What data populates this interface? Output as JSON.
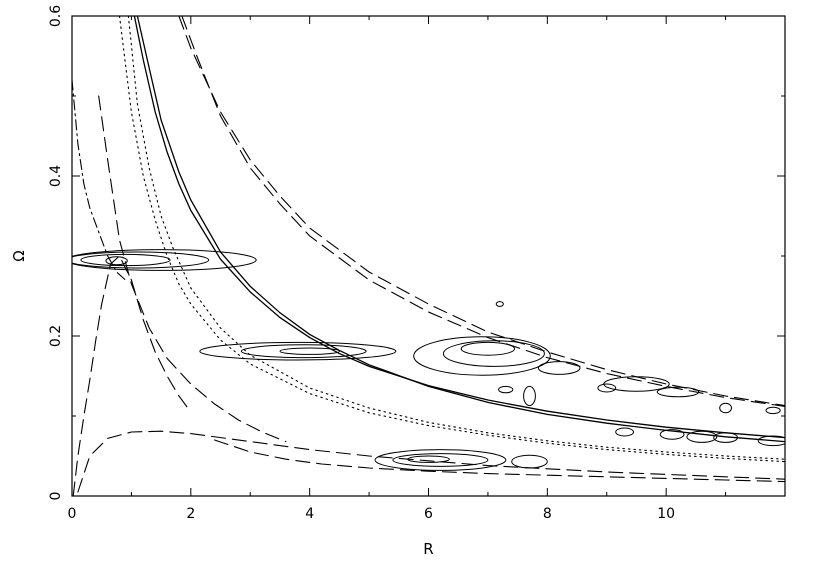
{
  "chart_data": {
    "type": "line",
    "title": "",
    "xlabel": "R",
    "ylabel": "Ω",
    "xlim": [
      0,
      12
    ],
    "ylim": [
      0,
      0.6
    ],
    "xticks": [
      0,
      2,
      4,
      6,
      8,
      10
    ],
    "yticks": [
      0,
      0.2,
      0.4,
      0.6
    ],
    "xtick_labels": [
      "0",
      "2",
      "4",
      "6",
      "8",
      "10"
    ],
    "ytick_labels": [
      "0",
      "0.2",
      "0.4",
      "0.6"
    ],
    "grid": false,
    "legend": "none",
    "color": "#000000",
    "series": [
      {
        "style": "solid",
        "x": [
          1.05,
          1.2,
          1.4,
          1.6,
          1.8,
          2.0,
          2.5,
          3.0,
          3.5,
          4.0,
          4.5,
          5.0,
          6.0,
          7.0,
          8.0,
          9.0,
          10.0,
          11.0,
          12.0
        ],
        "y": [
          0.6,
          0.545,
          0.48,
          0.43,
          0.39,
          0.357,
          0.296,
          0.255,
          0.223,
          0.198,
          0.178,
          0.162,
          0.138,
          0.12,
          0.106,
          0.095,
          0.086,
          0.079,
          0.073
        ]
      },
      {
        "style": "solid",
        "x": [
          1.1,
          1.3,
          1.5,
          1.8,
          2.0,
          2.5,
          3.0,
          3.5,
          4.0,
          4.5,
          5.0,
          6.0,
          7.0,
          8.0,
          9.0,
          10.0,
          11.0,
          12.0
        ],
        "y": [
          0.6,
          0.535,
          0.47,
          0.405,
          0.37,
          0.305,
          0.262,
          0.229,
          0.202,
          0.182,
          0.164,
          0.137,
          0.117,
          0.102,
          0.091,
          0.082,
          0.074,
          0.068
        ]
      },
      {
        "style": "dashed",
        "x": [
          1.8,
          2.0,
          2.5,
          3.0,
          3.5,
          4.0,
          5.0,
          6.0,
          7.0,
          8.0,
          9.0,
          10.0,
          11.0,
          12.0
        ],
        "y": [
          0.6,
          0.56,
          0.48,
          0.42,
          0.375,
          0.335,
          0.28,
          0.24,
          0.205,
          0.18,
          0.158,
          0.14,
          0.125,
          0.113
        ]
      },
      {
        "style": "dashed",
        "x": [
          1.85,
          2.1,
          2.5,
          3.0,
          3.5,
          4.0,
          5.0,
          6.0,
          7.0,
          8.0,
          9.0,
          10.0,
          11.0,
          12.0
        ],
        "y": [
          0.6,
          0.55,
          0.475,
          0.41,
          0.365,
          0.325,
          0.27,
          0.23,
          0.198,
          0.173,
          0.153,
          0.137,
          0.123,
          0.112
        ]
      },
      {
        "style": "dotted",
        "x": [
          0.8,
          1.0,
          1.2,
          1.4,
          1.6,
          1.8,
          2.0,
          2.5,
          3.0,
          4.0,
          5.0,
          6.0,
          7.0,
          8.0,
          9.0,
          10.0,
          11.0,
          12.0
        ],
        "y": [
          0.6,
          0.48,
          0.4,
          0.345,
          0.3,
          0.265,
          0.24,
          0.195,
          0.165,
          0.128,
          0.104,
          0.088,
          0.076,
          0.066,
          0.058,
          0.052,
          0.047,
          0.043
        ]
      },
      {
        "style": "dotted",
        "x": [
          0.95,
          1.1,
          1.3,
          1.5,
          1.7,
          2.0,
          2.5,
          3.0,
          4.0,
          5.0,
          6.0,
          7.0,
          8.0,
          9.0,
          10.0,
          11.0,
          12.0
        ],
        "y": [
          0.6,
          0.49,
          0.41,
          0.35,
          0.31,
          0.26,
          0.21,
          0.176,
          0.135,
          0.11,
          0.092,
          0.079,
          0.069,
          0.061,
          0.055,
          0.05,
          0.046
        ]
      },
      {
        "style": "dash-dot",
        "x": [
          0.0,
          0.1,
          0.2,
          0.3,
          0.45,
          0.6,
          0.75,
          0.9
        ],
        "y": [
          0.52,
          0.44,
          0.39,
          0.36,
          0.33,
          0.3,
          0.28,
          0.27
        ]
      },
      {
        "style": "dashed",
        "x": [
          0.02,
          0.1,
          0.2,
          0.3,
          0.4,
          0.5,
          0.65,
          0.8,
          1.0,
          1.2,
          1.4,
          1.6,
          1.8,
          2.0
        ],
        "y": [
          0.0,
          0.05,
          0.1,
          0.145,
          0.195,
          0.24,
          0.29,
          0.3,
          0.27,
          0.22,
          0.18,
          0.15,
          0.125,
          0.105
        ]
      },
      {
        "style": "dashed",
        "x": [
          0.45,
          0.6,
          0.8,
          1.0,
          1.3,
          1.6,
          2.0,
          2.4,
          2.8,
          3.2,
          3.6
        ],
        "y": [
          0.5,
          0.42,
          0.32,
          0.265,
          0.21,
          0.172,
          0.14,
          0.115,
          0.095,
          0.08,
          0.068
        ]
      },
      {
        "style": "dashed",
        "x": [
          0.1,
          0.3,
          0.6,
          1.0,
          1.5,
          2.0,
          3.0,
          4.0,
          5.0,
          6.0,
          7.0,
          8.0,
          9.0,
          10.0,
          11.0,
          12.0
        ],
        "y": [
          0.005,
          0.05,
          0.072,
          0.08,
          0.081,
          0.078,
          0.068,
          0.058,
          0.05,
          0.044,
          0.038,
          0.034,
          0.03,
          0.027,
          0.024,
          0.021
        ]
      },
      {
        "style": "dashed",
        "x": [
          2.4,
          3.0,
          3.6,
          4.2,
          5.0,
          6.0,
          7.0,
          8.0,
          9.0,
          10.0,
          11.0,
          12.0
        ],
        "y": [
          0.07,
          0.055,
          0.046,
          0.04,
          0.035,
          0.031,
          0.028,
          0.026,
          0.024,
          0.022,
          0.02,
          0.018
        ]
      }
    ],
    "contours": [
      {
        "cx": 0.9,
        "cy": 0.295,
        "rx": 0.75,
        "ry": 0.007
      },
      {
        "cx": 1.1,
        "cy": 0.295,
        "rx": 1.2,
        "ry": 0.01
      },
      {
        "cx": 1.5,
        "cy": 0.295,
        "rx": 1.6,
        "ry": 0.013
      },
      {
        "cx": 0.75,
        "cy": 0.294,
        "rx": 0.18,
        "ry": 0.005
      },
      {
        "cx": 4.0,
        "cy": 0.181,
        "rx": 0.5,
        "ry": 0.004
      },
      {
        "cx": 3.9,
        "cy": 0.181,
        "rx": 1.05,
        "ry": 0.008
      },
      {
        "cx": 3.8,
        "cy": 0.181,
        "rx": 1.65,
        "ry": 0.011
      },
      {
        "cx": 7.0,
        "cy": 0.184,
        "rx": 0.45,
        "ry": 0.008
      },
      {
        "cx": 7.1,
        "cy": 0.178,
        "rx": 0.85,
        "ry": 0.016
      },
      {
        "cx": 6.9,
        "cy": 0.175,
        "rx": 1.15,
        "ry": 0.024
      },
      {
        "cx": 8.2,
        "cy": 0.16,
        "rx": 0.35,
        "ry": 0.008
      },
      {
        "cx": 9.5,
        "cy": 0.14,
        "rx": 0.55,
        "ry": 0.009
      },
      {
        "cx": 10.2,
        "cy": 0.13,
        "rx": 0.35,
        "ry": 0.006
      },
      {
        "cx": 7.7,
        "cy": 0.125,
        "rx": 0.1,
        "ry": 0.012
      },
      {
        "cx": 7.3,
        "cy": 0.133,
        "rx": 0.12,
        "ry": 0.004
      },
      {
        "cx": 7.2,
        "cy": 0.24,
        "rx": 0.06,
        "ry": 0.003
      },
      {
        "cx": 6.0,
        "cy": 0.046,
        "rx": 0.35,
        "ry": 0.004
      },
      {
        "cx": 6.2,
        "cy": 0.045,
        "rx": 0.8,
        "ry": 0.008
      },
      {
        "cx": 6.2,
        "cy": 0.045,
        "rx": 1.1,
        "ry": 0.013
      },
      {
        "cx": 7.7,
        "cy": 0.043,
        "rx": 0.3,
        "ry": 0.008
      },
      {
        "cx": 10.1,
        "cy": 0.077,
        "rx": 0.2,
        "ry": 0.006
      },
      {
        "cx": 10.6,
        "cy": 0.074,
        "rx": 0.25,
        "ry": 0.007
      },
      {
        "cx": 11.0,
        "cy": 0.073,
        "rx": 0.2,
        "ry": 0.006
      },
      {
        "cx": 11.8,
        "cy": 0.069,
        "rx": 0.25,
        "ry": 0.006
      },
      {
        "cx": 9.3,
        "cy": 0.08,
        "rx": 0.15,
        "ry": 0.005
      },
      {
        "cx": 11.0,
        "cy": 0.11,
        "rx": 0.1,
        "ry": 0.006
      },
      {
        "cx": 11.8,
        "cy": 0.107,
        "rx": 0.12,
        "ry": 0.004
      },
      {
        "cx": 9.0,
        "cy": 0.135,
        "rx": 0.15,
        "ry": 0.005
      }
    ]
  }
}
